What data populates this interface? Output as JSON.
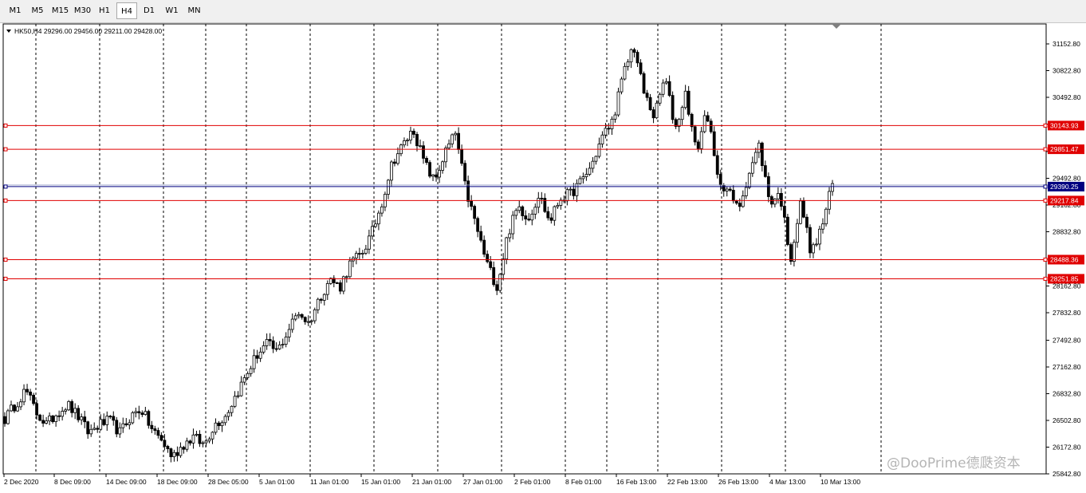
{
  "toolbar": {
    "timeframes": [
      {
        "label": "M1",
        "active": false
      },
      {
        "label": "M5",
        "active": false
      },
      {
        "label": "M15",
        "active": false
      },
      {
        "label": "M30",
        "active": false
      },
      {
        "label": "H1",
        "active": false
      },
      {
        "label": "H4",
        "active": true
      },
      {
        "label": "D1",
        "active": false
      },
      {
        "label": "W1",
        "active": false
      },
      {
        "label": "MN",
        "active": false
      }
    ]
  },
  "chart_header": {
    "symbol_period": "HK50,H4",
    "ohlc": "29296.00 29456.00 29211.00 29428.00"
  },
  "watermark": "@DooPrime德瓞资本",
  "colors": {
    "bull_candle": "#ffffff",
    "bear_candle": "#000000",
    "level_line": "#e00000",
    "level_label_bg": "#e00000",
    "bid_line": "#000080",
    "bid_label_bg": "#000080",
    "grid": "#000000"
  },
  "chart_data": {
    "type": "candlestick",
    "symbol": "HK50",
    "period": "H4",
    "ylim": [
      25842.8,
      31350
    ],
    "y_ticks": [
      "31152.80",
      "30822.80",
      "30492.80",
      "30162.80",
      "29822.80",
      "29492.80",
      "29162.80",
      "28832.80",
      "28492.80",
      "28162.80",
      "27832.80",
      "27492.80",
      "27162.80",
      "26832.80",
      "26502.80",
      "26172.80",
      "25842.80"
    ],
    "x_ticks": [
      "2 Dec 2020",
      "8 Dec 09:00",
      "14 Dec 09:00",
      "18 Dec 09:00",
      "28 Dec 05:00",
      "5 Jan 01:00",
      "11 Jan 01:00",
      "15 Jan 01:00",
      "21 Jan 01:00",
      "27 Jan 01:00",
      "2 Feb 01:00",
      "8 Feb 01:00",
      "16 Feb 13:00",
      "22 Feb 13:00",
      "26 Feb 13:00",
      "4 Mar 13:00",
      "10 Mar 13:00"
    ],
    "horizontal_levels": [
      {
        "price": 30143.93,
        "label": "30143.93"
      },
      {
        "price": 29851.47,
        "label": "29851.47"
      },
      {
        "price": 29217.84,
        "label": "29217.84"
      },
      {
        "price": 28488.36,
        "label": "28488.36"
      },
      {
        "price": 28251.85,
        "label": "28251.85"
      }
    ],
    "bid_line": {
      "price": 29390.25,
      "label": "29390.25"
    },
    "price_anchors": [
      26520,
      26700,
      26880,
      26600,
      26450,
      26600,
      26700,
      26550,
      26350,
      26450,
      26500,
      26350,
      26550,
      26650,
      26400,
      26250,
      26050,
      26200,
      26300,
      26200,
      26450,
      26550,
      26800,
      27050,
      27300,
      27450,
      27350,
      27600,
      27850,
      27700,
      28000,
      28250,
      28150,
      28450,
      28550,
      28800,
      29200,
      29700,
      29900,
      30100,
      29700,
      29450,
      29800,
      30050,
      29350,
      28900,
      28450,
      28150,
      28800,
      29150,
      29000,
      29300,
      28950,
      29250,
      29300,
      29450,
      29650,
      30000,
      30200,
      30750,
      31150,
      30550,
      30250,
      30750,
      30100,
      30550,
      29800,
      30350,
      29500,
      29350,
      29100,
      29550,
      29900,
      29200,
      29300,
      28500,
      29200,
      28550,
      28900,
      29428
    ]
  }
}
